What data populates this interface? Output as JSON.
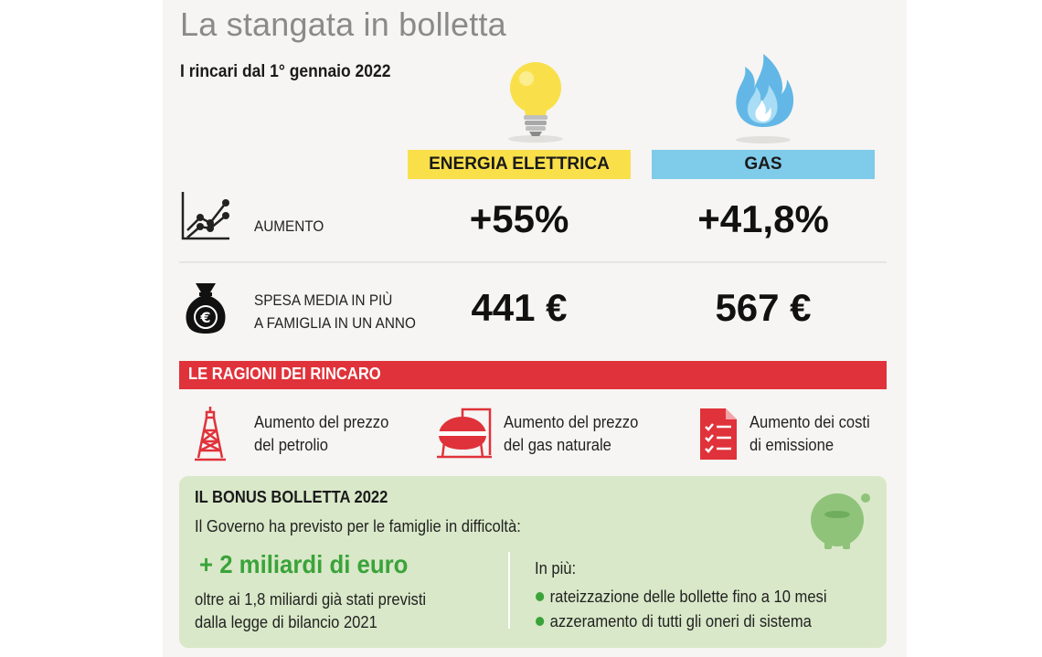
{
  "header": {
    "title": "La stangata in bolletta",
    "subtitle": "I rincari dal 1° gennaio 2022"
  },
  "columns": [
    {
      "label": "ENERGIA ELETTRICA",
      "icon": "lightbulb-icon",
      "color": "#f9e04b"
    },
    {
      "label": "GAS",
      "icon": "gas-flame-icon",
      "color": "#7fcbea"
    }
  ],
  "rows": [
    {
      "label": "AUMENTO",
      "icon": "line-chart-icon",
      "values": [
        "+55%",
        "+41,8%"
      ]
    },
    {
      "label_lines": [
        "SPESA MEDIA IN PIÙ",
        "A FAMIGLIA IN UN ANNO"
      ],
      "icon": "money-bag-euro-icon",
      "values": [
        "441 €",
        "567 €"
      ]
    }
  ],
  "reasons": {
    "title": "LE RAGIONI DEI RINCARO",
    "color": "#e0323a",
    "items": [
      {
        "icon": "oil-derrick-icon",
        "lines": [
          "Aumento del prezzo",
          "del petrolio"
        ]
      },
      {
        "icon": "gas-tank-icon",
        "lines": [
          "Aumento del prezzo",
          "del gas naturale"
        ]
      },
      {
        "icon": "checklist-document-icon",
        "lines": [
          "Aumento dei costi",
          "di emissione"
        ]
      }
    ]
  },
  "bonus": {
    "title": "IL BONUS BOLLETTA 2022",
    "intro": "Il Governo ha previsto per le famiglie in difficoltà:",
    "amount": "+ 2 miliardi di euro",
    "note_lines": [
      "oltre ai 1,8 miliardi già stati previsti",
      "dalla legge di bilancio 2021"
    ],
    "extra_title": "In più:",
    "extras": [
      "rateizzazione delle bollette fino a 10 mesi",
      "azzeramento di tutti gli oneri di sistema"
    ],
    "icon": "piggy-bank-icon",
    "accent": "#3aa33a"
  }
}
